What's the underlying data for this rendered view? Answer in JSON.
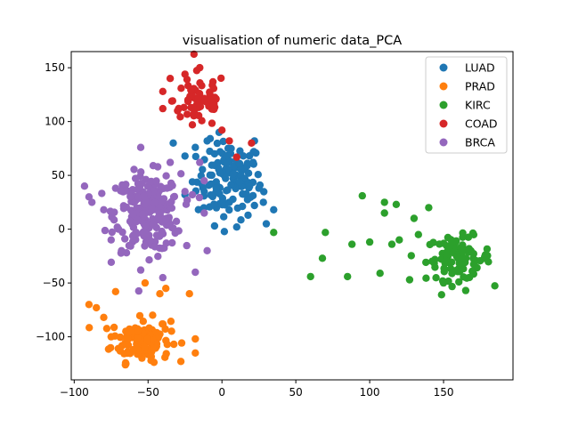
{
  "chart_data": {
    "type": "scatter",
    "title": "visualisation of numeric data_PCA",
    "xlabel": "",
    "ylabel": "",
    "xlim": [
      -102,
      197
    ],
    "ylim": [
      -140,
      165
    ],
    "xticks": [
      -100,
      -50,
      0,
      50,
      100,
      150
    ],
    "yticks": [
      -100,
      -50,
      0,
      50,
      100,
      150
    ],
    "grid": false,
    "legend_position": "top-right",
    "series": [
      {
        "name": "LUAD",
        "color": "#1f77b4",
        "center": [
          5,
          45
        ],
        "spread": [
          11,
          18
        ],
        "count": 120,
        "points": [
          [
            -33,
            80
          ],
          [
            -18,
            76
          ],
          [
            -25,
            68
          ],
          [
            -10,
            82
          ],
          [
            22,
            82
          ],
          [
            -5,
            70
          ],
          [
            12,
            61
          ],
          [
            25,
            38
          ],
          [
            35,
            18
          ],
          [
            30,
            5
          ],
          [
            22,
            22
          ],
          [
            -5,
            3
          ],
          [
            10,
            2
          ],
          [
            -20,
            44
          ],
          [
            -12,
            35
          ],
          [
            5,
            25
          ],
          [
            -25,
            32
          ],
          [
            18,
            52
          ],
          [
            28,
            25
          ]
        ]
      },
      {
        "name": "PRAD",
        "color": "#ff7f0e",
        "center": [
          -55,
          -103
        ],
        "spread": [
          10,
          10
        ],
        "count": 120,
        "points": [
          [
            -90,
            -70
          ],
          [
            -85,
            -73
          ],
          [
            -80,
            -82
          ],
          [
            -72,
            -58
          ],
          [
            -52,
            -50
          ],
          [
            -38,
            -55
          ],
          [
            -22,
            -60
          ],
          [
            -42,
            -60
          ],
          [
            -18,
            -102
          ],
          [
            -18,
            -115
          ],
          [
            -65,
            -125
          ],
          [
            -48,
            -122
          ],
          [
            -60,
            -112
          ],
          [
            -75,
            -100
          ]
        ]
      },
      {
        "name": "KIRC",
        "color": "#2ca02c",
        "center": [
          160,
          -27
        ],
        "spread": [
          11,
          10
        ],
        "count": 90,
        "points": [
          [
            35,
            -3
          ],
          [
            60,
            -44
          ],
          [
            68,
            -27
          ],
          [
            70,
            -3
          ],
          [
            85,
            -44
          ],
          [
            88,
            -14
          ],
          [
            95,
            31
          ],
          [
            100,
            -12
          ],
          [
            107,
            -41
          ],
          [
            110,
            25
          ],
          [
            110,
            15
          ],
          [
            118,
            23
          ],
          [
            120,
            -10
          ],
          [
            115,
            -14
          ],
          [
            130,
            10
          ],
          [
            133,
            -5
          ],
          [
            127,
            -47
          ],
          [
            140,
            20
          ],
          [
            150,
            -50
          ],
          [
            165,
            -57
          ]
        ]
      },
      {
        "name": "COAD",
        "color": "#d62728",
        "center": [
          -15,
          120
        ],
        "spread": [
          9,
          13
        ],
        "count": 60,
        "points": [
          [
            -40,
            128
          ],
          [
            -35,
            140
          ],
          [
            -40,
            112
          ],
          [
            -25,
            144
          ],
          [
            -15,
            150
          ],
          [
            -30,
            110
          ],
          [
            -8,
            120
          ],
          [
            0,
            92
          ],
          [
            5,
            82
          ],
          [
            10,
            67
          ],
          [
            20,
            80
          ],
          [
            -20,
            97
          ]
        ]
      },
      {
        "name": "BRCA",
        "color": "#9467bd",
        "center": [
          -50,
          15
        ],
        "spread": [
          11,
          18
        ],
        "count": 230,
        "points": [
          [
            -93,
            40
          ],
          [
            -90,
            30
          ],
          [
            -88,
            25
          ],
          [
            -80,
            18
          ],
          [
            -72,
            38
          ],
          [
            -70,
            0
          ],
          [
            -75,
            -10
          ],
          [
            -55,
            76
          ],
          [
            -35,
            62
          ],
          [
            -25,
            35
          ],
          [
            -20,
            32
          ],
          [
            -15,
            62
          ],
          [
            -12,
            45
          ],
          [
            -18,
            -40
          ],
          [
            -10,
            -20
          ],
          [
            -12,
            15
          ],
          [
            -40,
            -45
          ],
          [
            -55,
            -38
          ],
          [
            -68,
            -20
          ]
        ]
      }
    ]
  }
}
